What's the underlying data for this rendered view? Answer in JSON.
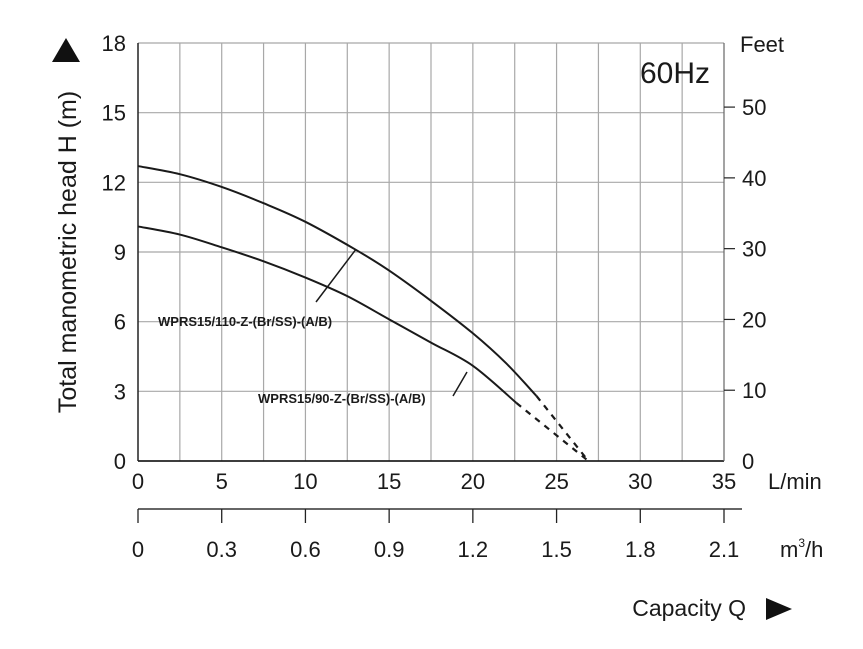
{
  "chart_data": {
    "type": "line",
    "annotation": "60Hz",
    "ylabel": "Total manometric head H (m)",
    "y2label": "Feet",
    "xlabel": "Capacity Q",
    "x_unit": "L/min",
    "x2_unit_base": "m",
    "x2_unit_sup": "3",
    "x2_unit_tail": "/h",
    "xlim": [
      0,
      35
    ],
    "ylim": [
      0,
      18
    ],
    "x_ticks": [
      "0",
      "5",
      "10",
      "15",
      "20",
      "25",
      "30",
      "35"
    ],
    "y_ticks": [
      "0",
      "3",
      "6",
      "9",
      "12",
      "15",
      "18"
    ],
    "y2_ticks": [
      "0",
      "10",
      "20",
      "30",
      "40",
      "50"
    ],
    "x2_ticks": [
      "0",
      "0.3",
      "0.6",
      "0.9",
      "1.2",
      "1.5",
      "1.8",
      "2.1"
    ],
    "grid": true,
    "series": [
      {
        "name": "WPRS15/110-Z-(Br/SS)-(A/B)",
        "x": [
          0,
          2.5,
          5,
          7.5,
          10,
          13,
          15,
          17.5,
          20,
          22,
          23.8
        ],
        "y": [
          12.7,
          12.35,
          11.8,
          11.1,
          10.3,
          9.1,
          8.2,
          6.9,
          5.5,
          4.2,
          2.8
        ],
        "extrapolated": {
          "x": [
            23.8,
            26.9
          ],
          "y": [
            2.8,
            0
          ]
        }
      },
      {
        "name": "WPRS15/90-Z-(Br/SS)-(A/B)",
        "x": [
          0,
          2.5,
          5,
          7.5,
          10,
          12.5,
          15,
          17.5,
          20,
          22.6
        ],
        "y": [
          10.1,
          9.75,
          9.2,
          8.6,
          7.9,
          7.1,
          6.1,
          5.1,
          4.1,
          2.5
        ],
        "extrapolated": {
          "x": [
            22.6,
            26.9
          ],
          "y": [
            2.5,
            0
          ]
        }
      }
    ]
  }
}
